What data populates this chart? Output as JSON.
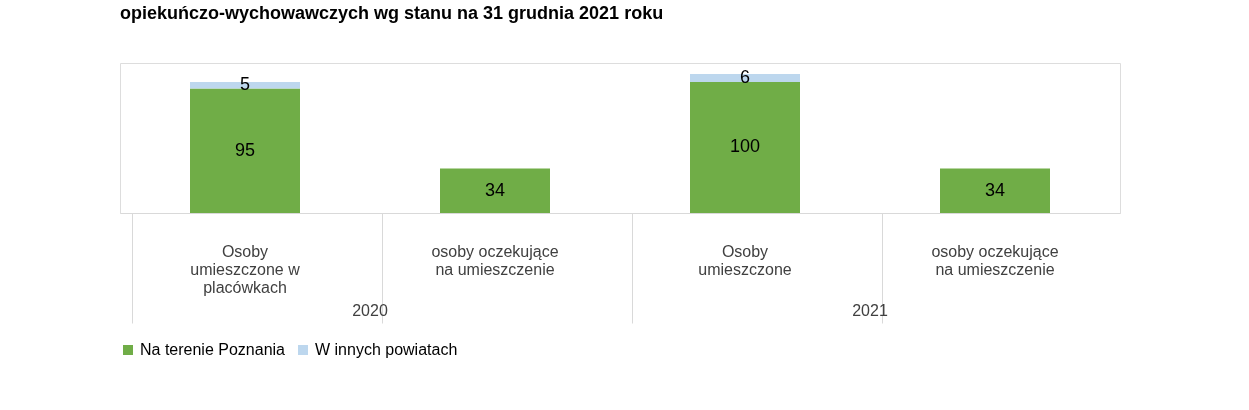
{
  "chart_data": {
    "type": "bar",
    "title": "opiekuńczo-wychowawczych wg stanu na 31 grudnia 2021 roku",
    "categories": [
      "Osoby umieszczone w placówkach",
      "osoby oczekujące na umieszczenie",
      "Osoby umieszczone",
      "osoby oczekujące na umieszczenie"
    ],
    "stacked": true,
    "data_labels": true,
    "legend": "bottom",
    "grid": false,
    "series": [
      {
        "name": "Na terenie Poznania",
        "color": "#70ad47",
        "values": [
          95,
          34,
          100,
          34
        ]
      },
      {
        "name": "W innych powiatach",
        "color": "#bdd7ee",
        "values": [
          5,
          null,
          6,
          null
        ]
      }
    ],
    "annotations": [
      "2020",
      "2021"
    ]
  }
}
